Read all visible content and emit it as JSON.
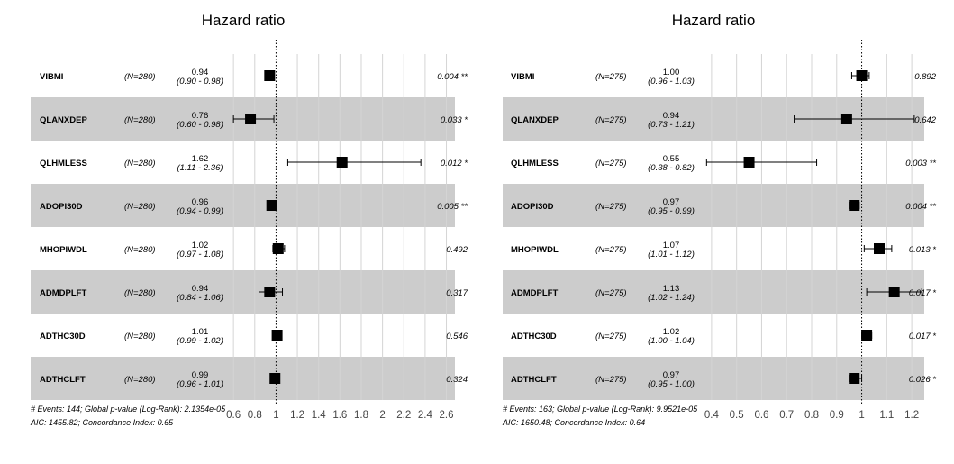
{
  "chart_data": [
    {
      "type": "forest",
      "title": "Hazard ratio",
      "ticks": [
        0.6,
        0.8,
        1,
        1.2,
        1.4,
        1.6,
        1.8,
        2,
        2.2,
        2.4,
        2.6
      ],
      "tick_labels": [
        "0.6",
        "0.8",
        "1",
        "1.2",
        "1.4",
        "1.6",
        "1.8",
        "2",
        "2.2",
        "2.4",
        "2.6"
      ],
      "xlim": [
        0.548,
        2.68
      ],
      "reference": 1,
      "rows": [
        {
          "var": "VIBMI",
          "n": "(N=280)",
          "hr": 0.94,
          "lo": 0.9,
          "hi": 0.98,
          "hr_label": "0.94",
          "ci_label": "(0.90 - 0.98)",
          "p_label": "0.004 **"
        },
        {
          "var": "QLANXDEP",
          "n": "(N=280)",
          "hr": 0.76,
          "lo": 0.6,
          "hi": 0.98,
          "hr_label": "0.76",
          "ci_label": "(0.60 - 0.98)",
          "p_label": "0.033 *"
        },
        {
          "var": "QLHMLESS",
          "n": "(N=280)",
          "hr": 1.62,
          "lo": 1.11,
          "hi": 2.36,
          "hr_label": "1.62",
          "ci_label": "(1.11 - 2.36)",
          "p_label": "0.012 *"
        },
        {
          "var": "ADOPI30D",
          "n": "(N=280)",
          "hr": 0.96,
          "lo": 0.94,
          "hi": 0.99,
          "hr_label": "0.96",
          "ci_label": "(0.94 - 0.99)",
          "p_label": "0.005 **"
        },
        {
          "var": "MHOPIWDL",
          "n": "(N=280)",
          "hr": 1.02,
          "lo": 0.97,
          "hi": 1.08,
          "hr_label": "1.02",
          "ci_label": "(0.97 - 1.08)",
          "p_label": "0.492"
        },
        {
          "var": "ADMDPLFT",
          "n": "(N=280)",
          "hr": 0.94,
          "lo": 0.84,
          "hi": 1.06,
          "hr_label": "0.94",
          "ci_label": "(0.84 - 1.06)",
          "p_label": "0.317"
        },
        {
          "var": "ADTHC30D",
          "n": "(N=280)",
          "hr": 1.01,
          "lo": 0.99,
          "hi": 1.02,
          "hr_label": "1.01",
          "ci_label": "(0.99 - 1.02)",
          "p_label": "0.546"
        },
        {
          "var": "ADTHCLFT",
          "n": "(N=280)",
          "hr": 0.99,
          "lo": 0.96,
          "hi": 1.01,
          "hr_label": "0.99",
          "ci_label": "(0.96 - 1.01)",
          "p_label": "0.324"
        }
      ],
      "footer": [
        "# Events: 144; Global p-value (Log-Rank): 2.1354e-05",
        "AIC: 1455.82; Concordance Index: 0.65"
      ]
    },
    {
      "type": "forest",
      "title": "Hazard ratio",
      "ticks": [
        0.4,
        0.5,
        0.6,
        0.7,
        0.8,
        0.9,
        1,
        1.1,
        1.2
      ],
      "tick_labels": [
        "0.4",
        "0.5",
        "0.6",
        "0.7",
        "0.8",
        "0.9",
        "1",
        "1.1",
        "1.2"
      ],
      "xlim": [
        0.35,
        1.25
      ],
      "reference": 1,
      "rows": [
        {
          "var": "VIBMI",
          "n": "(N=275)",
          "hr": 1.0,
          "lo": 0.96,
          "hi": 1.03,
          "hr_label": "1.00",
          "ci_label": "(0.96 - 1.03)",
          "p_label": "0.892"
        },
        {
          "var": "QLANXDEP",
          "n": "(N=275)",
          "hr": 0.94,
          "lo": 0.73,
          "hi": 1.21,
          "hr_label": "0.94",
          "ci_label": "(0.73 - 1.21)",
          "p_label": "0.642"
        },
        {
          "var": "QLHMLESS",
          "n": "(N=275)",
          "hr": 0.55,
          "lo": 0.38,
          "hi": 0.82,
          "hr_label": "0.55",
          "ci_label": "(0.38 - 0.82)",
          "p_label": "0.003 **"
        },
        {
          "var": "ADOPI30D",
          "n": "(N=275)",
          "hr": 0.97,
          "lo": 0.95,
          "hi": 0.99,
          "hr_label": "0.97",
          "ci_label": "(0.95 - 0.99)",
          "p_label": "0.004 **"
        },
        {
          "var": "MHOPIWDL",
          "n": "(N=275)",
          "hr": 1.07,
          "lo": 1.01,
          "hi": 1.12,
          "hr_label": "1.07",
          "ci_label": "(1.01 - 1.12)",
          "p_label": "0.013 *"
        },
        {
          "var": "ADMDPLFT",
          "n": "(N=275)",
          "hr": 1.13,
          "lo": 1.02,
          "hi": 1.24,
          "hr_label": "1.13",
          "ci_label": "(1.02 - 1.24)",
          "p_label": "0.017 *"
        },
        {
          "var": "ADTHC30D",
          "n": "(N=275)",
          "hr": 1.02,
          "lo": 1.0,
          "hi": 1.04,
          "hr_label": "1.02",
          "ci_label": "(1.00 - 1.04)",
          "p_label": "0.017 *"
        },
        {
          "var": "ADTHCLFT",
          "n": "(N=275)",
          "hr": 0.97,
          "lo": 0.95,
          "hi": 1.0,
          "hr_label": "0.97",
          "ci_label": "(0.95 - 1.00)",
          "p_label": "0.026 *"
        }
      ],
      "footer": [
        "# Events: 163; Global p-value (Log-Rank): 9.9521e-05",
        "AIC: 1650.48; Concordance Index: 0.64"
      ]
    }
  ],
  "colors": {
    "stripe": "#cccccc",
    "grid": "#d4d4d4",
    "marker": "#000000"
  }
}
